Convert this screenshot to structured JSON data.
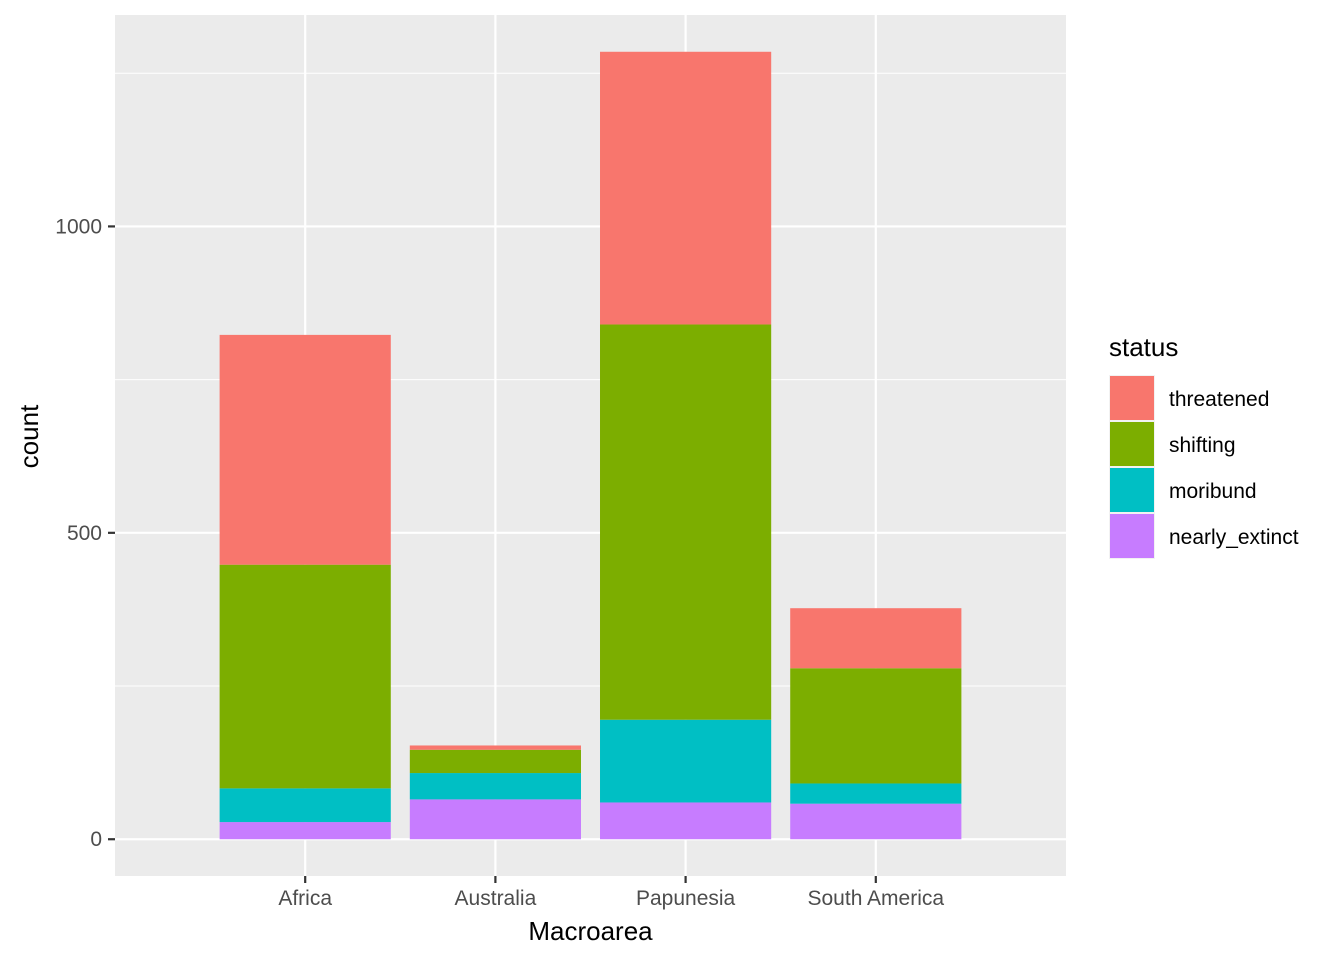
{
  "chart_data": {
    "type": "bar",
    "stacked": true,
    "categories": [
      "Africa",
      "Australia",
      "Papunesia",
      "South America"
    ],
    "series": [
      {
        "name": "nearly_extinct",
        "color": "#C77CFF",
        "values": [
          28,
          65,
          60,
          58
        ]
      },
      {
        "name": "moribund",
        "color": "#00BFC4",
        "values": [
          55,
          43,
          135,
          33
        ]
      },
      {
        "name": "shifting",
        "color": "#7CAE00",
        "values": [
          365,
          38,
          645,
          188
        ]
      },
      {
        "name": "threatened",
        "color": "#F8766D",
        "values": [
          375,
          7,
          445,
          98
        ]
      }
    ],
    "title": "",
    "xlabel": "Macroarea",
    "ylabel": "count",
    "ylim": [
      -60,
      1345
    ],
    "yticks": [
      0,
      500,
      1000
    ],
    "legend_title": "status",
    "legend_order": [
      "threatened",
      "shifting",
      "moribund",
      "nearly_extinct"
    ],
    "legend_position": "right",
    "grid": true,
    "panel_color": "#EBEBEB",
    "grid_color": "#FFFFFF"
  }
}
